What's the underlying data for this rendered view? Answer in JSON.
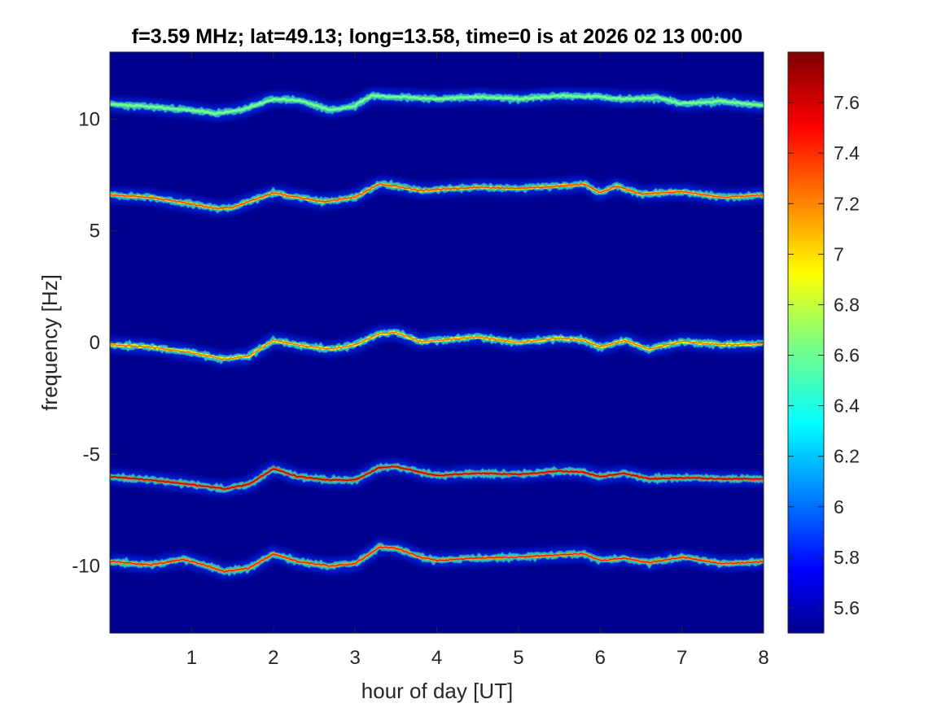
{
  "chart_data": {
    "type": "heatmap",
    "title": "f=3.59 MHz;  lat=49.13; long=13.58, time=0 is at 2026 02 13 00:00",
    "xlabel": "hour of day [UT]",
    "ylabel": "frequency [Hz]",
    "xlim": [
      0,
      8
    ],
    "ylim": [
      -13,
      13
    ],
    "xticks": [
      1,
      2,
      3,
      4,
      5,
      6,
      7,
      8
    ],
    "xtick_labels": [
      "1",
      "2",
      "3",
      "4",
      "5",
      "6",
      "7",
      "8"
    ],
    "yticks": [
      10,
      5,
      0,
      -5,
      -10
    ],
    "ytick_labels": [
      "10",
      "5",
      "0",
      "-5",
      "-10"
    ],
    "colorbar": {
      "limits": [
        5.5,
        7.8
      ],
      "ticks": [
        7.6,
        7.4,
        7.2,
        7,
        6.8,
        6.6,
        6.4,
        6.2,
        6,
        5.8,
        5.6
      ],
      "tick_labels": [
        "7.6",
        "7.4",
        "7.2",
        "7",
        "6.8",
        "6.6",
        "6.4",
        "6.2",
        "6",
        "5.8",
        "5.6"
      ],
      "colormap": "jet"
    },
    "background_color": "#00008f",
    "traces": [
      {
        "center_hz": 10.5,
        "peak_value": 6.6,
        "points": [
          [
            0,
            0.15
          ],
          [
            0.5,
            0.05
          ],
          [
            1.0,
            -0.1
          ],
          [
            1.3,
            -0.25
          ],
          [
            1.6,
            -0.1
          ],
          [
            2.0,
            0.4
          ],
          [
            2.3,
            0.35
          ],
          [
            2.7,
            -0.1
          ],
          [
            3.0,
            0.1
          ],
          [
            3.2,
            0.55
          ],
          [
            3.5,
            0.5
          ],
          [
            3.8,
            0.45
          ],
          [
            4.0,
            0.4
          ],
          [
            4.5,
            0.5
          ],
          [
            5.0,
            0.4
          ],
          [
            5.5,
            0.55
          ],
          [
            6.0,
            0.5
          ],
          [
            6.3,
            0.4
          ],
          [
            6.7,
            0.45
          ],
          [
            7.0,
            0.2
          ],
          [
            7.5,
            0.3
          ],
          [
            8.0,
            0.1
          ]
        ]
      },
      {
        "center_hz": 6.5,
        "peak_value": 7.4,
        "points": [
          [
            0,
            0.1
          ],
          [
            0.5,
            0.0
          ],
          [
            1.0,
            -0.3
          ],
          [
            1.3,
            -0.5
          ],
          [
            1.5,
            -0.45
          ],
          [
            2.0,
            0.2
          ],
          [
            2.3,
            0.0
          ],
          [
            2.6,
            -0.2
          ],
          [
            3.0,
            0.0
          ],
          [
            3.3,
            0.6
          ],
          [
            3.5,
            0.5
          ],
          [
            3.8,
            0.3
          ],
          [
            4.0,
            0.35
          ],
          [
            4.5,
            0.45
          ],
          [
            5.0,
            0.4
          ],
          [
            5.5,
            0.5
          ],
          [
            5.8,
            0.6
          ],
          [
            6.0,
            0.2
          ],
          [
            6.2,
            0.5
          ],
          [
            6.5,
            0.15
          ],
          [
            7.0,
            0.25
          ],
          [
            7.5,
            0.0
          ],
          [
            8.0,
            0.1
          ]
        ]
      },
      {
        "center_hz": -0.1,
        "peak_value": 7.3,
        "points": [
          [
            0,
            0.0
          ],
          [
            0.5,
            -0.1
          ],
          [
            1.0,
            -0.35
          ],
          [
            1.4,
            -0.65
          ],
          [
            1.7,
            -0.5
          ],
          [
            2.0,
            0.2
          ],
          [
            2.3,
            0.0
          ],
          [
            2.7,
            -0.2
          ],
          [
            3.0,
            0.0
          ],
          [
            3.3,
            0.5
          ],
          [
            3.5,
            0.55
          ],
          [
            3.8,
            0.15
          ],
          [
            4.0,
            0.2
          ],
          [
            4.5,
            0.35
          ],
          [
            5.0,
            0.1
          ],
          [
            5.5,
            0.3
          ],
          [
            5.8,
            0.2
          ],
          [
            6.0,
            -0.1
          ],
          [
            6.3,
            0.2
          ],
          [
            6.6,
            -0.2
          ],
          [
            7.0,
            0.15
          ],
          [
            7.5,
            0.0
          ],
          [
            8.0,
            0.05
          ]
        ]
      },
      {
        "center_hz": -6.1,
        "peak_value": 7.7,
        "points": [
          [
            0,
            0.1
          ],
          [
            0.5,
            -0.05
          ],
          [
            1.0,
            -0.25
          ],
          [
            1.4,
            -0.45
          ],
          [
            1.7,
            -0.25
          ],
          [
            2.0,
            0.45
          ],
          [
            2.3,
            0.1
          ],
          [
            2.7,
            -0.05
          ],
          [
            3.0,
            -0.05
          ],
          [
            3.3,
            0.5
          ],
          [
            3.5,
            0.55
          ],
          [
            3.8,
            0.3
          ],
          [
            4.0,
            0.15
          ],
          [
            4.5,
            0.25
          ],
          [
            5.0,
            0.2
          ],
          [
            5.5,
            0.35
          ],
          [
            5.8,
            0.3
          ],
          [
            6.0,
            0.1
          ],
          [
            6.3,
            0.25
          ],
          [
            6.6,
            0.0
          ],
          [
            7.0,
            0.05
          ],
          [
            7.5,
            0.0
          ],
          [
            8.0,
            0.0
          ]
        ]
      },
      {
        "center_hz": -9.8,
        "peak_value": 7.5,
        "points": [
          [
            0,
            0.0
          ],
          [
            0.5,
            -0.15
          ],
          [
            0.9,
            0.1
          ],
          [
            1.2,
            -0.2
          ],
          [
            1.4,
            -0.45
          ],
          [
            1.7,
            -0.3
          ],
          [
            2.0,
            0.35
          ],
          [
            2.3,
            0.0
          ],
          [
            2.7,
            -0.2
          ],
          [
            3.0,
            -0.1
          ],
          [
            3.3,
            0.65
          ],
          [
            3.5,
            0.6
          ],
          [
            3.8,
            0.2
          ],
          [
            4.0,
            0.05
          ],
          [
            4.5,
            0.15
          ],
          [
            5.0,
            0.2
          ],
          [
            5.5,
            0.3
          ],
          [
            5.8,
            0.35
          ],
          [
            6.0,
            0.05
          ],
          [
            6.3,
            0.15
          ],
          [
            6.6,
            -0.05
          ],
          [
            7.0,
            0.2
          ],
          [
            7.5,
            -0.1
          ],
          [
            8.0,
            0.0
          ]
        ]
      }
    ]
  }
}
